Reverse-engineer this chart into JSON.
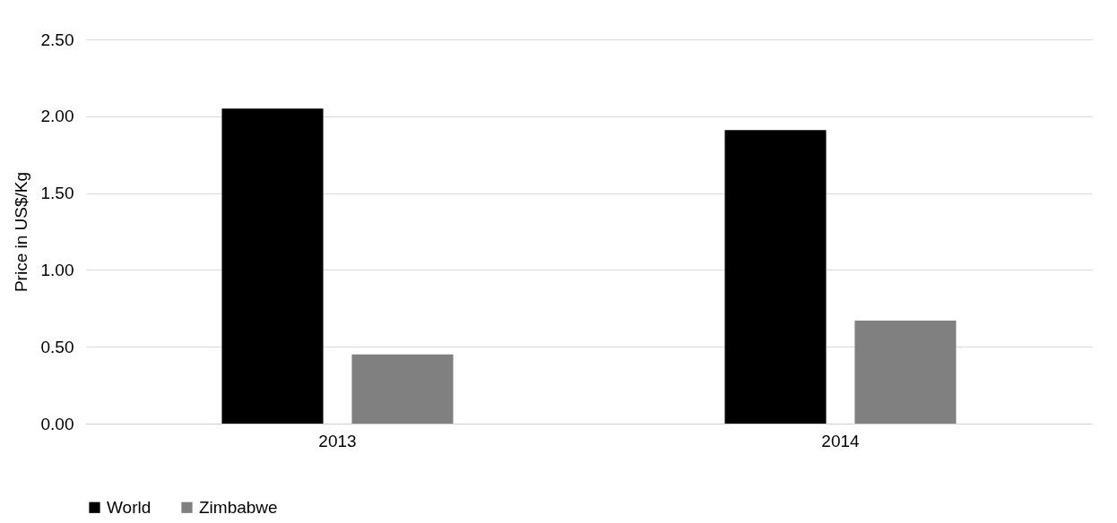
{
  "chart_data": {
    "type": "bar",
    "ylabel": "Price in US$/Kg",
    "categories": [
      "2013",
      "2014"
    ],
    "series": [
      {
        "name": "World",
        "color": "#000000",
        "values": [
          2.05,
          1.91
        ]
      },
      {
        "name": "Zimbabwe",
        "color": "#808080",
        "values": [
          0.45,
          0.67
        ]
      }
    ],
    "ylim": [
      0,
      2.5
    ],
    "yticks": [
      {
        "value": 0,
        "label": "0.00"
      },
      {
        "value": 0.5,
        "label": "0.50"
      },
      {
        "value": 1,
        "label": "1.00"
      },
      {
        "value": 1.5,
        "label": "1.50"
      },
      {
        "value": 2,
        "label": "2.00"
      },
      {
        "value": 2.5,
        "label": "2.50"
      }
    ],
    "grid": "y",
    "legend": "bottom"
  }
}
